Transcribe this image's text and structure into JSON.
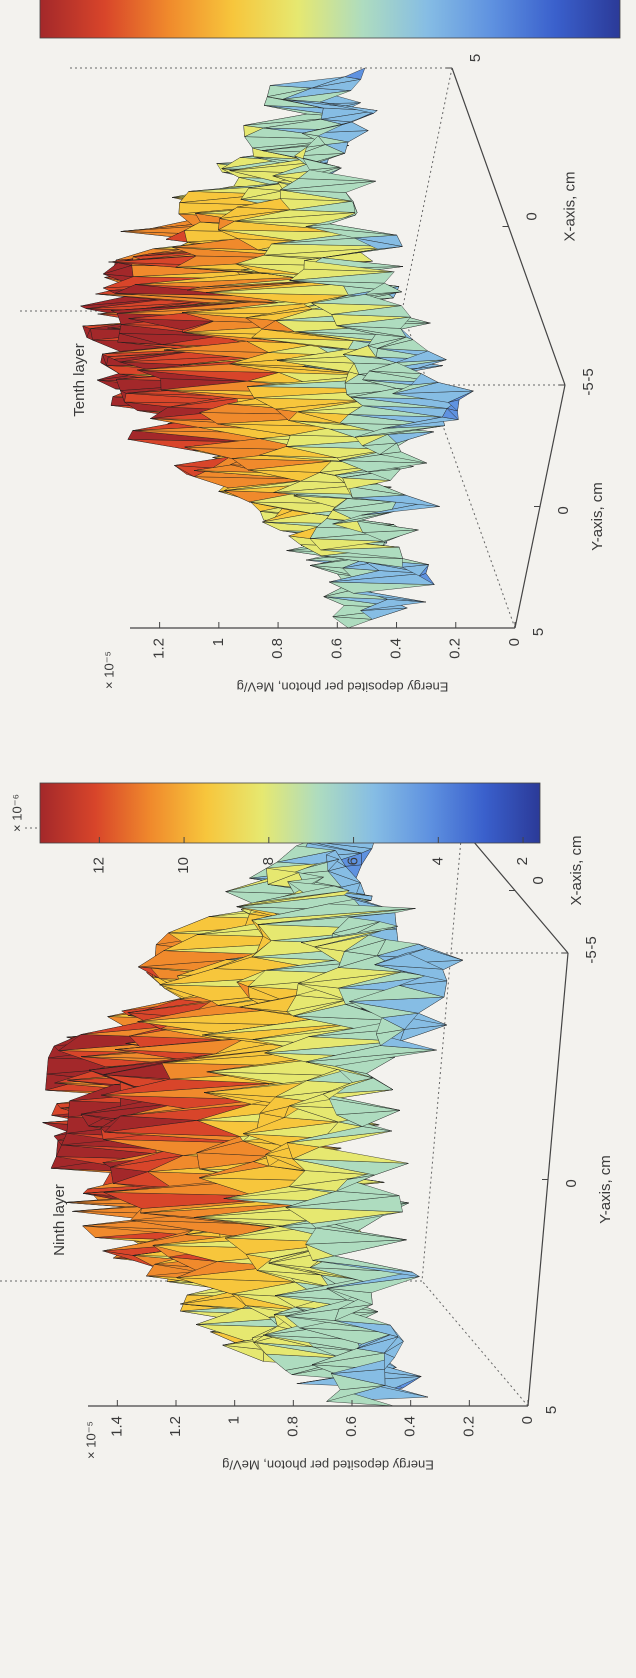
{
  "chart_data": [
    {
      "type": "surface",
      "title": "Ninth layer",
      "zscale_label": "× 10⁻⁵",
      "zlabel": "Energy deposited per photon, MeV/g",
      "xlabel": "X-axis, cm",
      "ylabel": "Y-axis, cm",
      "xlim": [
        -5,
        5
      ],
      "xticks": [
        -5,
        0,
        5
      ],
      "ylim": [
        -5,
        5
      ],
      "yticks": [
        -5,
        0,
        5
      ],
      "zlim": [
        0,
        1.5
      ],
      "zticks": [
        0,
        0.2,
        0.4,
        0.6,
        0.8,
        1,
        1.2,
        1.4
      ],
      "colorbar": true,
      "cscale_label": "× 10⁻⁶",
      "clim": [
        1.6,
        13.4
      ],
      "cticks": [
        2,
        4,
        6,
        8,
        10,
        12
      ],
      "colormap": [
        "#2b3a98",
        "#3a60cc",
        "#5f92e0",
        "#86bde4",
        "#aedcbf",
        "#e6e870",
        "#f7c63c",
        "#f08a2c",
        "#d8452a",
        "#a3282a"
      ]
    },
    {
      "type": "surface",
      "title": "Tenth layer",
      "zscale_label": "× 10⁻⁵",
      "zlabel": "Energy deposited per photon, MeV/g",
      "xlabel": "X-axis, cm",
      "ylabel": "Y-axis, cm",
      "xlim": [
        -5,
        5
      ],
      "xticks": [
        -5,
        0,
        5
      ],
      "ylim": [
        -5,
        5
      ],
      "yticks": [
        -5,
        0,
        5
      ],
      "zlim": [
        0,
        1.3
      ],
      "zticks": [
        0,
        0.2,
        0.4,
        0.6,
        0.8,
        1,
        1.2
      ],
      "colorbar": true,
      "colormap": [
        "#2b3a98",
        "#3a60cc",
        "#5f92e0",
        "#86bde4",
        "#aedcbf",
        "#e6e870",
        "#f7c63c",
        "#f08a2c",
        "#d8452a",
        "#a3282a"
      ]
    }
  ]
}
